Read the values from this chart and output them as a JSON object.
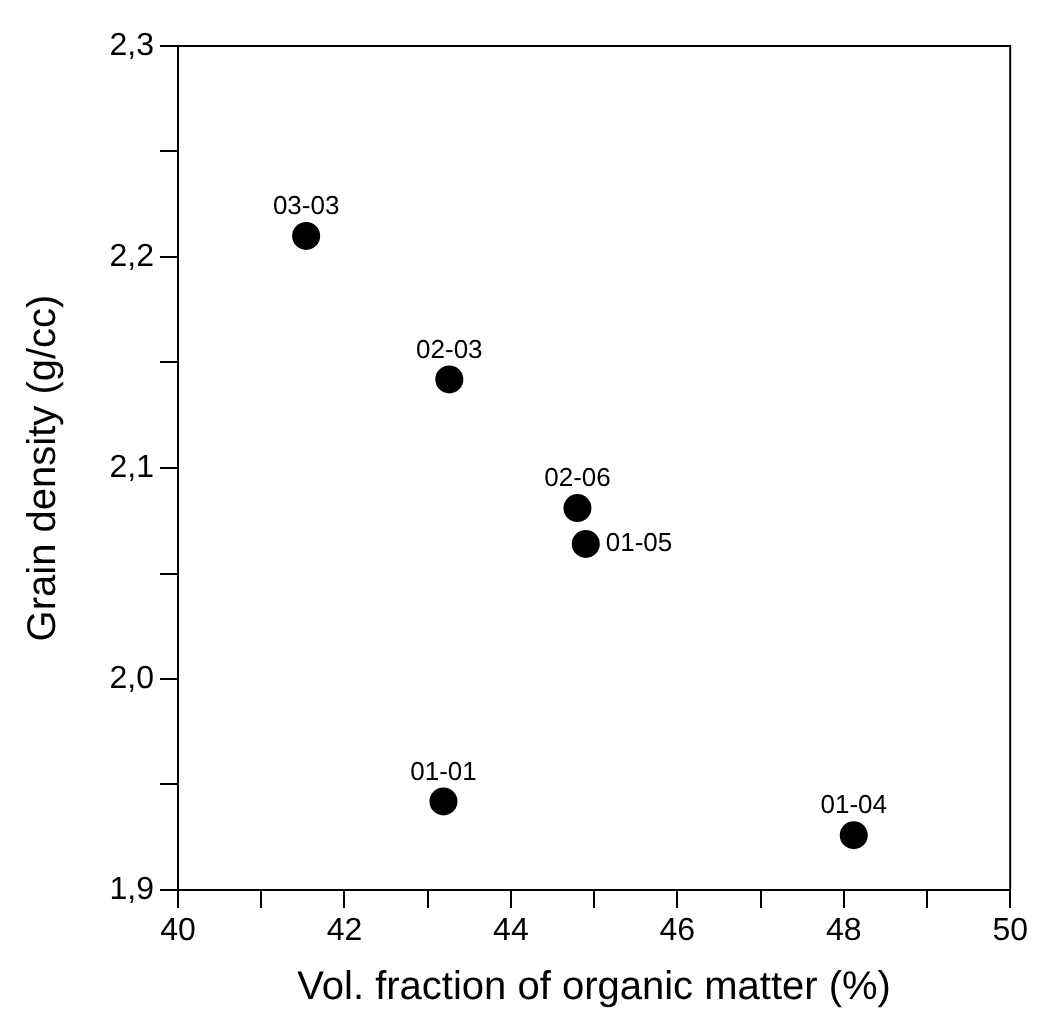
{
  "chart_data": {
    "type": "scatter",
    "xlabel": "Vol. fraction of organic matter (%)",
    "ylabel": "Grain density (g/cc)",
    "x": [
      41.54,
      43.26,
      44.8,
      44.9,
      43.19,
      48.12
    ],
    "series": [
      {
        "color": "#000000",
        "values": [
          2.21,
          2.142,
          2.081,
          2.064,
          1.942,
          1.926
        ]
      }
    ],
    "marker": "circle",
    "grid": false,
    "legend": false,
    "xlim": [
      40,
      50
    ],
    "xticks": [
      40,
      {
        "value": 41,
        "label": null
      },
      42,
      {
        "value": 43,
        "label": null
      },
      44,
      {
        "value": 45,
        "label": null
      },
      46,
      {
        "value": 47,
        "label": null
      },
      48,
      {
        "value": 49,
        "label": null
      },
      50
    ],
    "ylim": [
      1.9,
      2.3
    ],
    "yticks": [
      {
        "value": 1.9,
        "label": "1,9"
      },
      {
        "value": 1.95,
        "label": null
      },
      {
        "value": 2.0,
        "label": "2,0"
      },
      {
        "value": 2.05,
        "label": null
      },
      {
        "value": 2.1,
        "label": "2,1"
      },
      {
        "value": 2.15,
        "label": null
      },
      {
        "value": 2.2,
        "label": "2,2"
      },
      {
        "value": 2.25,
        "label": null
      },
      {
        "value": 2.3,
        "label": "2,3"
      }
    ],
    "annotations": [
      {
        "text": "03-03",
        "x": 41.54,
        "y": 2.21
      },
      {
        "text": "02-03",
        "x": 43.26,
        "y": 2.142
      },
      {
        "text": "02-06",
        "x": 44.8,
        "y": 2.081
      },
      {
        "text": "01-05",
        "x": 44.9,
        "y": 2.064
      },
      {
        "text": "01-01",
        "x": 43.19,
        "y": 1.942
      },
      {
        "text": "01-04",
        "x": 48.12,
        "y": 1.926
      }
    ]
  }
}
